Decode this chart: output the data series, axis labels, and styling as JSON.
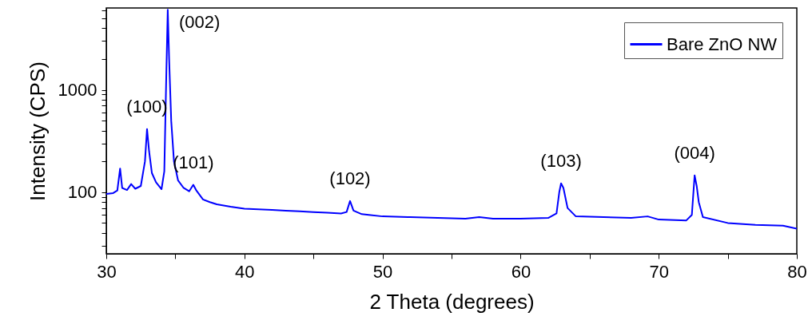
{
  "chart_data": {
    "type": "line",
    "xlabel": "2 Theta (degrees)",
    "ylabel": "Intensity (CPS)",
    "log": "y",
    "legend": "top right",
    "grid": false,
    "marker": "none",
    "line_style": "solid",
    "xlim": [
      30,
      80
    ],
    "xticks": [
      30,
      {
        "value": 35,
        "label": null
      },
      40,
      {
        "value": 45,
        "label": null
      },
      50,
      {
        "value": 55,
        "label": null
      },
      60,
      {
        "value": 65,
        "label": null
      },
      70,
      {
        "value": 75,
        "label": null
      },
      80
    ],
    "ylim": [
      25,
      6300
    ],
    "yticks": [
      {
        "value": 30,
        "label": null
      },
      {
        "value": 40,
        "label": null
      },
      {
        "value": 50,
        "label": null
      },
      {
        "value": 60,
        "label": null
      },
      {
        "value": 70,
        "label": null
      },
      {
        "value": 80,
        "label": null
      },
      {
        "value": 90,
        "label": null
      },
      100,
      {
        "value": 200,
        "label": null
      },
      {
        "value": 300,
        "label": null
      },
      {
        "value": 400,
        "label": null
      },
      {
        "value": 500,
        "label": null
      },
      {
        "value": 600,
        "label": null
      },
      {
        "value": 700,
        "label": null
      },
      {
        "value": 800,
        "label": null
      },
      {
        "value": 900,
        "label": null
      },
      1000,
      {
        "value": 2000,
        "label": null
      },
      {
        "value": 3000,
        "label": null
      },
      {
        "value": 4000,
        "label": null
      },
      {
        "value": 5000,
        "label": null
      },
      {
        "value": 6000,
        "label": null
      }
    ],
    "annotations": [
      {
        "text": "(100)",
        "x": 32.95,
        "y": 414
      },
      {
        "text": "(002)",
        "x": 34.45,
        "y": 6050
      },
      {
        "text": "(101)",
        "x": 36.3,
        "y": 118
      },
      {
        "text": "(102)",
        "x": 47.65,
        "y": 82
      },
      {
        "text": "(103)",
        "x": 62.93,
        "y": 122
      },
      {
        "text": "(004)",
        "x": 72.6,
        "y": 146
      }
    ],
    "series": [
      {
        "name": "Bare ZnO NW",
        "color": "#0000ff",
        "x": [
          30,
          30.5,
          30.8,
          31,
          31.15,
          31.5,
          31.8,
          32.1,
          32.5,
          32.8,
          32.95,
          33.1,
          33.3,
          33.6,
          34,
          34.2,
          34.35,
          34.45,
          34.55,
          34.7,
          34.9,
          35.2,
          35.6,
          36,
          36.3,
          36.5,
          37,
          37.5,
          38,
          39,
          40,
          41,
          42,
          43,
          44,
          45,
          46,
          47,
          47.4,
          47.65,
          47.9,
          48.5,
          49,
          50,
          52,
          54,
          56,
          57,
          58,
          60,
          62,
          62.6,
          62.8,
          62.93,
          63.1,
          63.4,
          64,
          66,
          68,
          69.2,
          70,
          72,
          72.4,
          72.6,
          72.75,
          72.9,
          73.2,
          75,
          77,
          79,
          80
        ],
        "values": [
          96,
          98,
          104,
          170,
          110,
          105,
          120,
          108,
          115,
          200,
          414,
          250,
          154,
          125,
          107,
          160,
          1500,
          6050,
          2000,
          500,
          200,
          130,
          110,
          102,
          118,
          105,
          85,
          80,
          76,
          72,
          69,
          68,
          67,
          66,
          65,
          64,
          63,
          62,
          64,
          82,
          66,
          61,
          60,
          58,
          57,
          56,
          55,
          57,
          55,
          55,
          56,
          62,
          100,
          122,
          110,
          70,
          58,
          57,
          56,
          58,
          54,
          53,
          60,
          146,
          115,
          80,
          57,
          50,
          48,
          47,
          44
        ]
      }
    ]
  }
}
